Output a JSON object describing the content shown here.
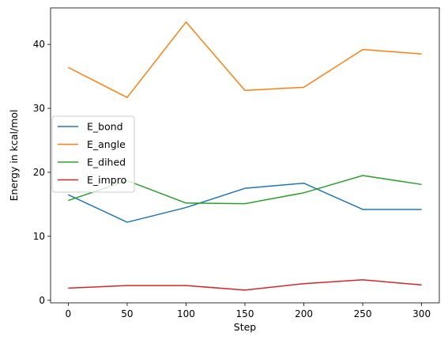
{
  "chart_data": {
    "type": "line",
    "title": "",
    "xlabel": "Step",
    "ylabel": "Energy in kcal/mol",
    "x": [
      0,
      50,
      100,
      150,
      200,
      250,
      300
    ],
    "xlim": [
      -15,
      315
    ],
    "ylim": [
      -0.4,
      45.7
    ],
    "xticks": [
      0,
      50,
      100,
      150,
      200,
      250,
      300
    ],
    "yticks": [
      0,
      10,
      20,
      30,
      40
    ],
    "grid": false,
    "legend_position": "center-left",
    "series": [
      {
        "name": "E_bond",
        "color": "#1f77b4",
        "values": [
          16.5,
          12.2,
          14.5,
          17.5,
          18.3,
          14.2,
          14.2
        ]
      },
      {
        "name": "E_angle",
        "color": "#ff7f0e",
        "values": [
          36.4,
          31.7,
          43.5,
          32.8,
          33.3,
          39.2,
          38.5
        ]
      },
      {
        "name": "E_dihed",
        "color": "#2ca02c",
        "values": [
          15.6,
          18.7,
          15.2,
          15.1,
          16.8,
          19.5,
          18.1
        ]
      },
      {
        "name": "E_impro",
        "color": "#d62728",
        "values": [
          1.9,
          2.3,
          2.3,
          1.6,
          2.6,
          3.2,
          2.4
        ]
      }
    ]
  }
}
